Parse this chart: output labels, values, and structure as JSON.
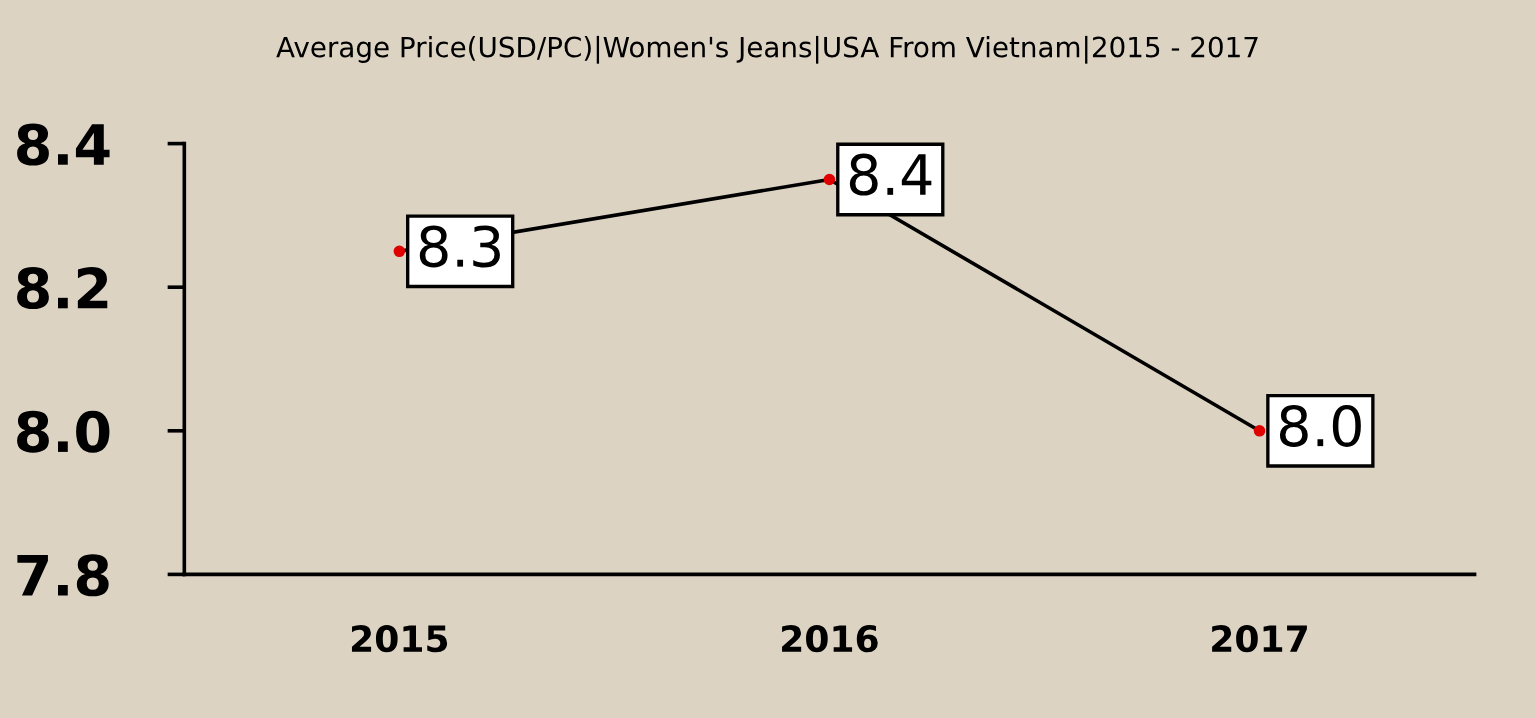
{
  "chart_data": {
    "type": "line",
    "title": "Average Price(USD/PC)|Women's Jeans|USA From Vietnam|2015 - 2017",
    "categories": [
      "2015",
      "2016",
      "2017"
    ],
    "series": [
      {
        "color": "#000000",
        "colors": [
          "#e00000",
          "#e00000",
          "#e00000"
        ],
        "values": [
          8.25,
          8.35,
          8.0
        ],
        "value_labels": [
          "8.3",
          "8.4",
          "8.0"
        ]
      }
    ],
    "ylim": [
      7.8,
      8.4
    ],
    "yticks": [
      {
        "value": 7.8,
        "label": "7.8"
      },
      {
        "value": 8.0,
        "label": "8.0"
      },
      {
        "value": 8.2,
        "label": "8.2"
      },
      {
        "value": 8.4,
        "label": "8.4"
      }
    ],
    "grid": false,
    "marker": "circle",
    "line_style": "solid"
  }
}
